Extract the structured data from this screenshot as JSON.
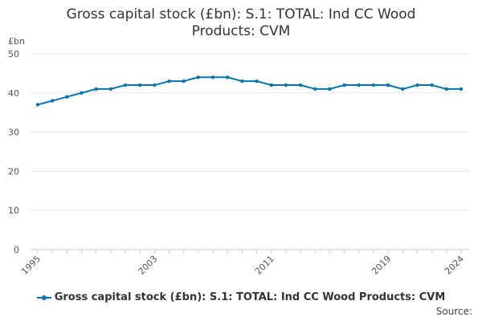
{
  "chart_data": {
    "type": "line",
    "title_lines": [
      "Gross capital stock (£bn): S.1: TOTAL: Ind CC Wood",
      "Products: CVM"
    ],
    "y_unit": "£bn",
    "ylim": [
      0,
      50
    ],
    "y_ticks": [
      0,
      10,
      20,
      30,
      40,
      50
    ],
    "x_tick_labels": [
      "1995",
      "2003",
      "2011",
      "2019",
      "2024"
    ],
    "x": [
      1995,
      1996,
      1997,
      1998,
      1999,
      2000,
      2001,
      2002,
      2003,
      2004,
      2005,
      2006,
      2007,
      2008,
      2009,
      2010,
      2011,
      2012,
      2013,
      2014,
      2015,
      2016,
      2017,
      2018,
      2019,
      2020,
      2021,
      2022,
      2023,
      2024
    ],
    "series": [
      {
        "name": "Gross capital stock (£bn): S.1: TOTAL: Ind CC Wood Products: CVM",
        "color": "#0075b0",
        "values": [
          37,
          38,
          39,
          40,
          41,
          41,
          42,
          42,
          42,
          43,
          43,
          44,
          44,
          44,
          43,
          43,
          42,
          42,
          42,
          41,
          41,
          42,
          42,
          42,
          42,
          41,
          42,
          42,
          41,
          41
        ]
      }
    ],
    "grid": true,
    "legend_position": "bottom",
    "source_label": "Source:"
  }
}
